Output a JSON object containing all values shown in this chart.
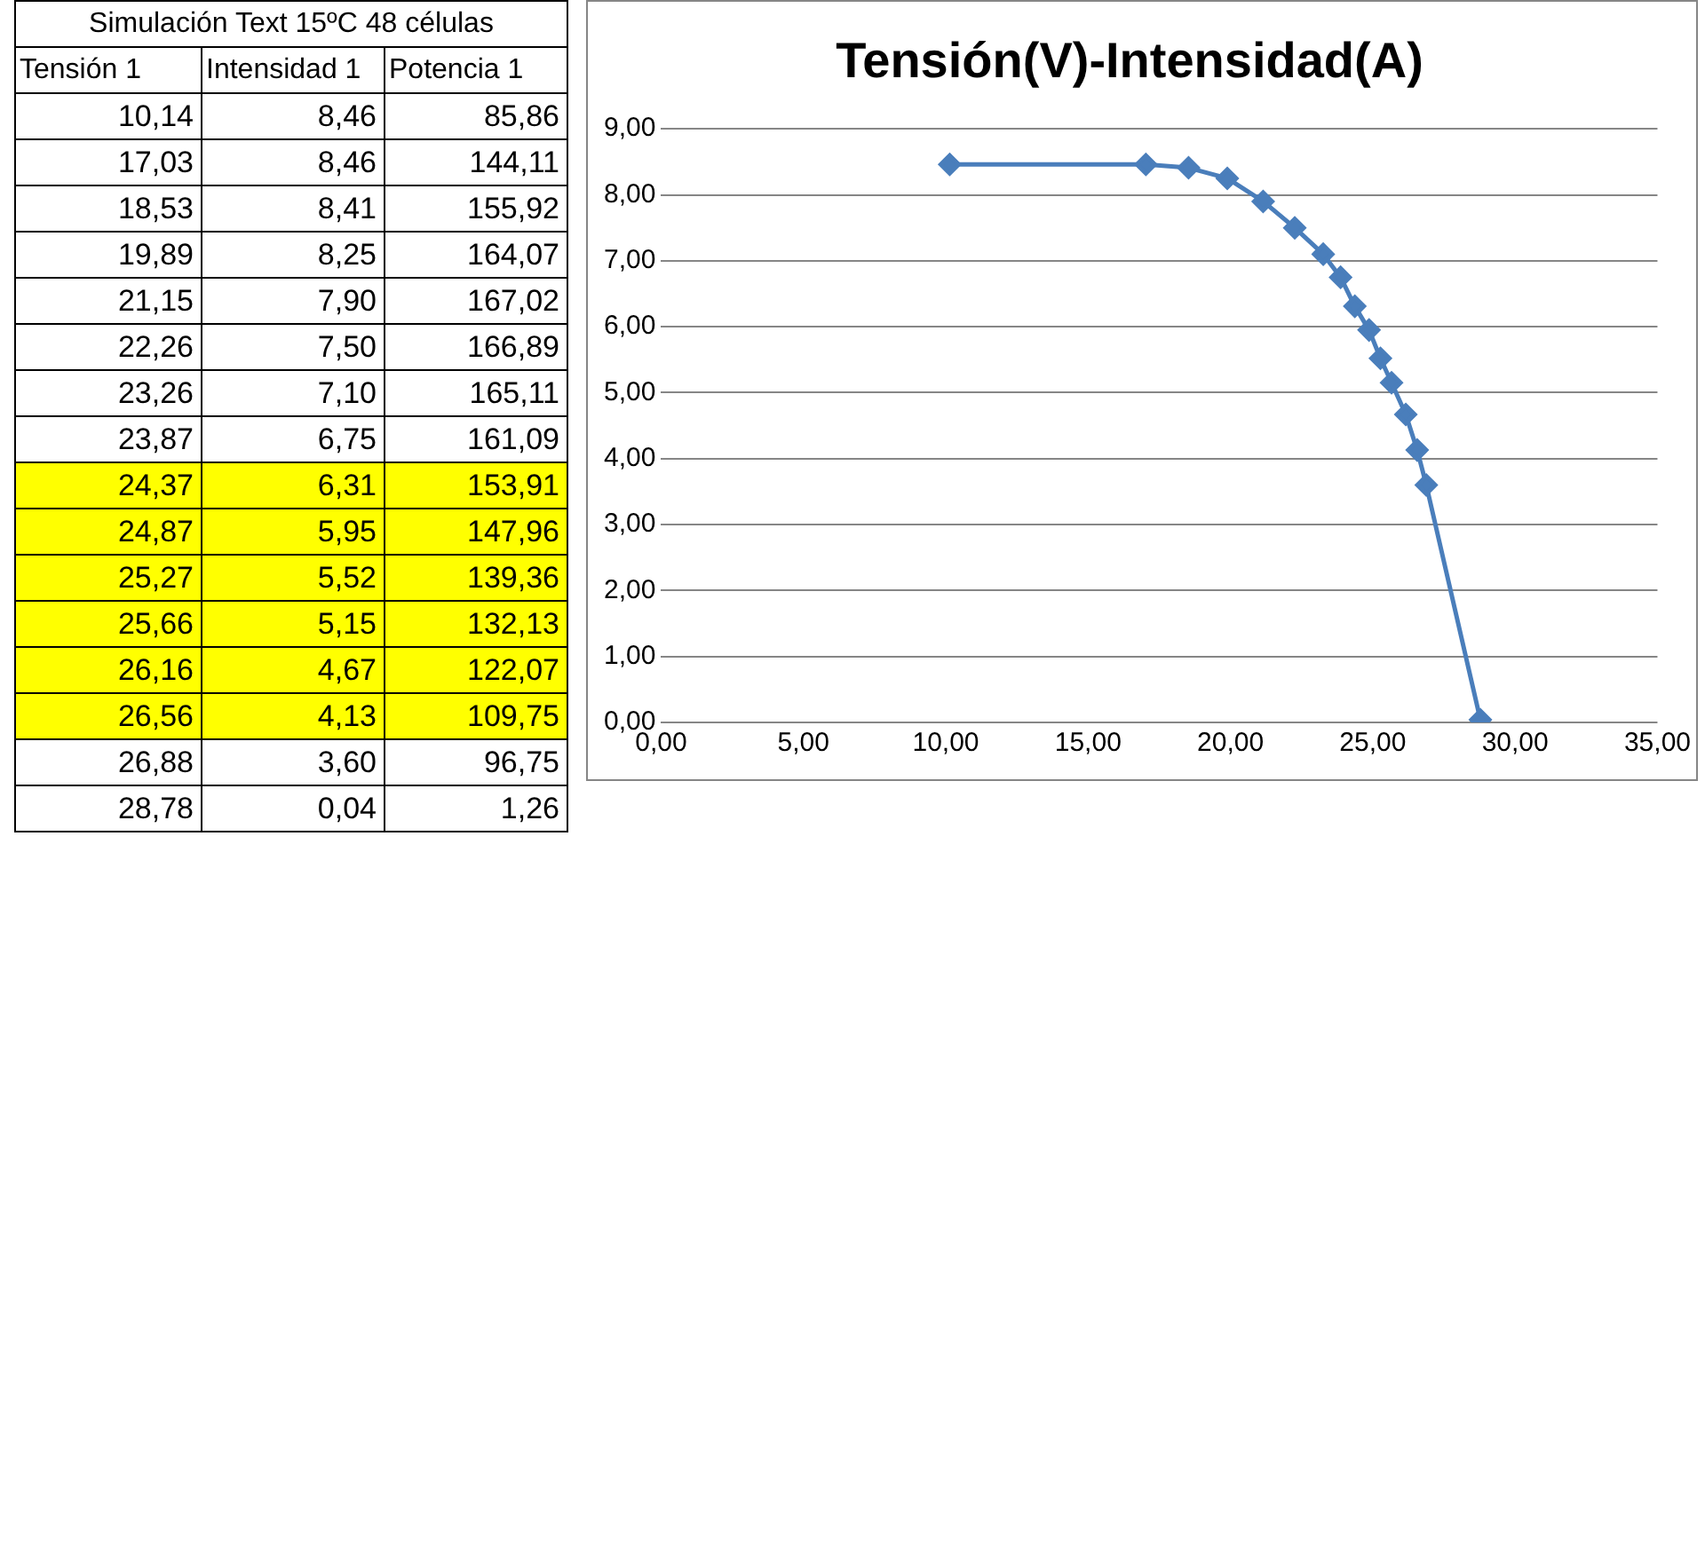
{
  "chart_data": [
    {
      "type": "other",
      "title": "Simulación Text 15ºC 48 células",
      "categories": [
        "Tensión 1",
        "Intensidad 1",
        "Potencia 1"
      ],
      "cell_labels": [
        [
          "10,14",
          "8,46",
          "85,86"
        ],
        [
          "17,03",
          "8,46",
          "144,11"
        ],
        [
          "18,53",
          "8,41",
          "155,92"
        ],
        [
          "19,89",
          "8,25",
          "164,07"
        ],
        [
          "21,15",
          "7,90",
          "167,02"
        ],
        [
          "22,26",
          "7,50",
          "166,89"
        ],
        [
          "23,26",
          "7,10",
          "165,11"
        ],
        [
          "23,87",
          "6,75",
          "161,09"
        ],
        [
          "24,37",
          "6,31",
          "153,91"
        ],
        [
          "24,87",
          "5,95",
          "147,96"
        ],
        [
          "25,27",
          "5,52",
          "139,36"
        ],
        [
          "25,66",
          "5,15",
          "132,13"
        ],
        [
          "26,16",
          "4,67",
          "122,07"
        ],
        [
          "26,56",
          "4,13",
          "109,75"
        ],
        [
          "26,88",
          "3,60",
          "96,75"
        ],
        [
          "28,78",
          "0,04",
          "1,26"
        ]
      ],
      "colors": [
        "#ffffff",
        "#ffffff",
        "#ffffff",
        "#ffffff",
        "#ffffff",
        "#ffffff",
        "#ffffff",
        "#ffffff",
        "#ffff00",
        "#ffff00",
        "#ffff00",
        "#ffff00",
        "#ffff00",
        "#ffff00",
        "#ffffff",
        "#ffffff"
      ]
    },
    {
      "type": "line",
      "title": "Tensión(V)-Intensidad(A)",
      "x": [
        10.14,
        17.03,
        18.53,
        19.89,
        21.15,
        22.26,
        23.26,
        23.87,
        24.37,
        24.87,
        25.27,
        25.66,
        26.16,
        26.56,
        26.88,
        28.78
      ],
      "values": [
        8.46,
        8.46,
        8.41,
        8.25,
        7.9,
        7.5,
        7.1,
        6.75,
        6.31,
        5.95,
        5.52,
        5.15,
        4.67,
        4.13,
        3.6,
        0.04
      ],
      "color": "#4a7ebb",
      "xlim": [
        0,
        35
      ],
      "xticks": [
        {
          "value": 0,
          "label": "0,00"
        },
        {
          "value": 5,
          "label": "5,00"
        },
        {
          "value": 10,
          "label": "10,00"
        },
        {
          "value": 15,
          "label": "15,00"
        },
        {
          "value": 20,
          "label": "20,00"
        },
        {
          "value": 25,
          "label": "25,00"
        },
        {
          "value": 30,
          "label": "30,00"
        },
        {
          "value": 35,
          "label": "35,00"
        }
      ],
      "ylim": [
        0,
        9
      ],
      "yticks": [
        {
          "value": 0,
          "label": "0,00"
        },
        {
          "value": 1,
          "label": "1,00"
        },
        {
          "value": 2,
          "label": "2,00"
        },
        {
          "value": 3,
          "label": "3,00"
        },
        {
          "value": 4,
          "label": "4,00"
        },
        {
          "value": 5,
          "label": "5,00"
        },
        {
          "value": 6,
          "label": "6,00"
        },
        {
          "value": 7,
          "label": "7,00"
        },
        {
          "value": 8,
          "label": "8,00"
        },
        {
          "value": 9,
          "label": "9,00"
        }
      ],
      "grid": "y",
      "marker": "diamond",
      "line_style": "solid"
    }
  ]
}
